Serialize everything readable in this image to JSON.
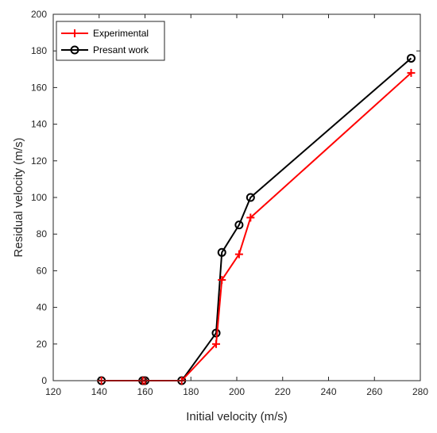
{
  "chart_data": {
    "type": "line",
    "title": "",
    "xlabel": "Initial velocity (m/s)",
    "ylabel": "Residual velocity (m/s)",
    "xlim": [
      120,
      280
    ],
    "ylim": [
      0,
      200
    ],
    "xticks": [
      "120",
      "140",
      "160",
      "180",
      "200",
      "220",
      "240",
      "260",
      "280"
    ],
    "yticks": [
      "0",
      "20",
      "40",
      "60",
      "80",
      "100",
      "120",
      "140",
      "160",
      "180",
      "200"
    ],
    "grid": false,
    "legend": {
      "position": "top-left"
    },
    "series": [
      {
        "name": "Experimental",
        "color": "#ff0000",
        "marker": "plus",
        "x": [
          141,
          159,
          160,
          176,
          191,
          193.5,
          201,
          206,
          276
        ],
        "y": [
          0,
          0,
          0,
          0,
          20,
          55,
          69,
          89,
          168
        ]
      },
      {
        "name": "Presant work",
        "color": "#000000",
        "marker": "circle",
        "x": [
          141,
          159,
          160,
          176,
          191,
          193.5,
          201,
          206,
          276
        ],
        "y": [
          0,
          0,
          0,
          0,
          26,
          70,
          85,
          100,
          176
        ]
      }
    ]
  }
}
